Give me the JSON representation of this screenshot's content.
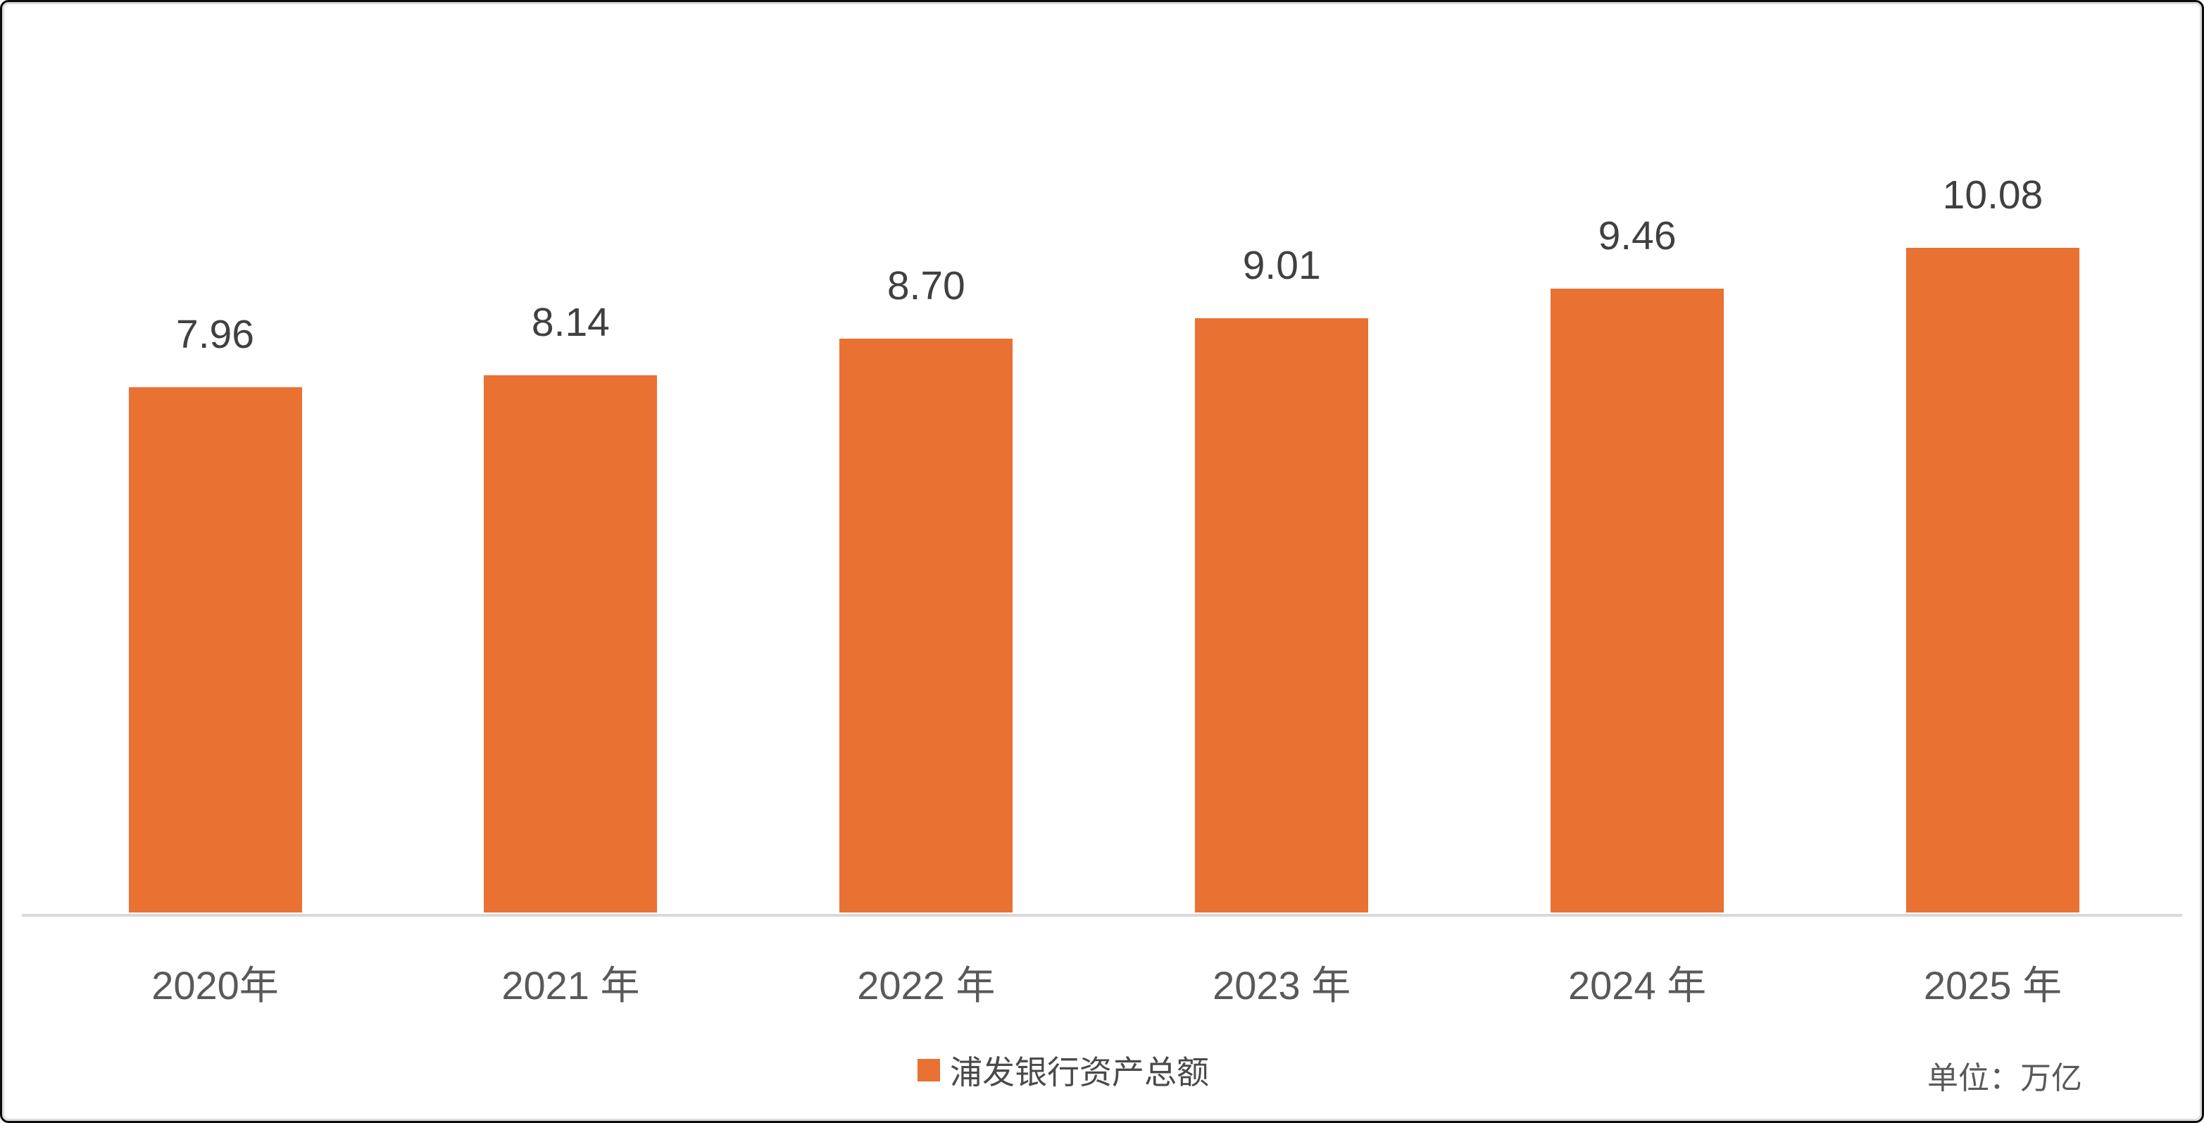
{
  "chart_data": {
    "type": "bar",
    "title": "",
    "categories": [
      "2020年",
      "2021 年",
      "2022 年",
      "2023 年",
      "2024 年",
      "2025 年"
    ],
    "values": [
      7.96,
      8.14,
      8.7,
      9.01,
      9.46,
      10.08
    ],
    "data_labels": [
      "7.96",
      "8.14",
      "8.70",
      "9.01",
      "9.46",
      "10.08"
    ],
    "series_name": "浦发银行资产总额",
    "unit_note": "单位：万亿",
    "bar_color": "#E97132",
    "axis_line_color": "#D9D9D9",
    "xlabel": "",
    "ylabel": "",
    "ylim": [
      0,
      10.8
    ],
    "grid": false,
    "legend_position": "bottom-center"
  }
}
